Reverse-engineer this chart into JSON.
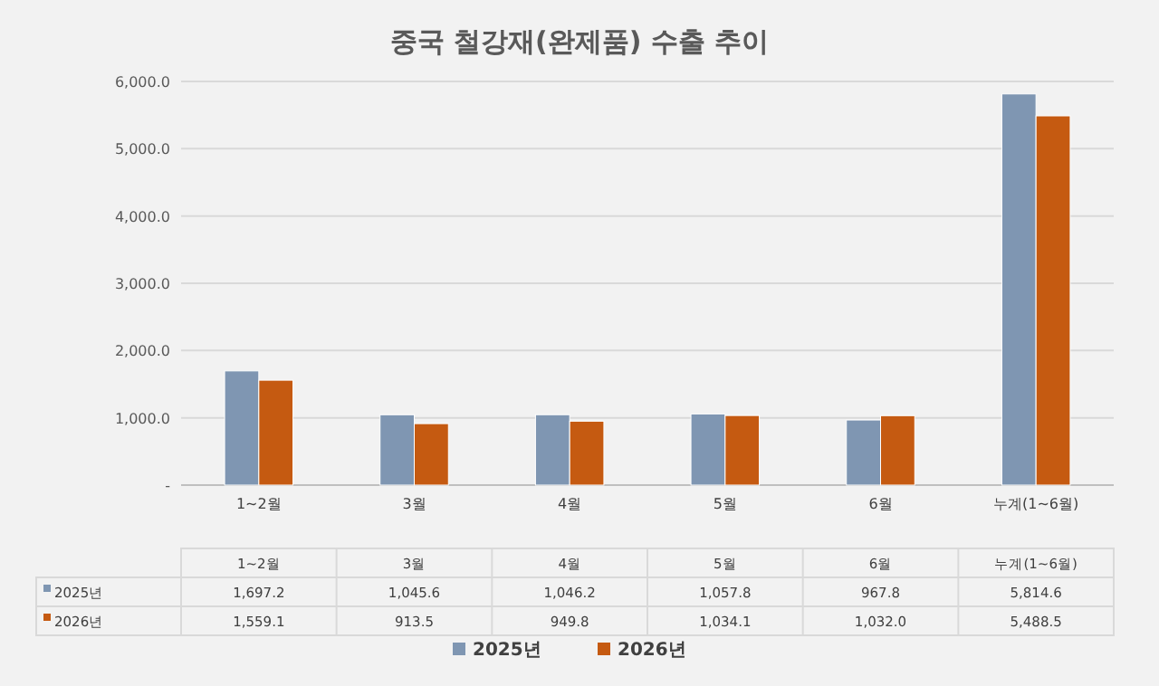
{
  "chart_data": {
    "type": "bar",
    "title": "중국 철강재(완제품) 수출 추이",
    "categories": [
      "1~2월",
      "3월",
      "4월",
      "5월",
      "6월",
      "누계(1~6월)"
    ],
    "series": [
      {
        "name": "2025년",
        "color": "#7f96b2",
        "values": [
          1697.2,
          1045.6,
          1046.2,
          1057.8,
          967.8,
          5814.6
        ],
        "value_labels": [
          "1,697.2",
          "1,045.6",
          "1,046.2",
          "1,057.8",
          "967.8",
          "5,814.6"
        ]
      },
      {
        "name": "2026년",
        "color": "#c55a11",
        "values": [
          1559.1,
          913.5,
          949.8,
          1034.1,
          1032.0,
          5488.5
        ],
        "value_labels": [
          "1,559.1",
          "913.5",
          "949.8",
          "1,034.1",
          "1,032.0",
          "5,488.5"
        ]
      }
    ],
    "ylim": [
      0,
      6000
    ],
    "yticks": [
      {
        "value": 0,
        "label": "-"
      },
      {
        "value": 1000,
        "label": "1,000.0"
      },
      {
        "value": 2000,
        "label": "2,000.0"
      },
      {
        "value": 3000,
        "label": "3,000.0"
      },
      {
        "value": 4000,
        "label": "4,000.0"
      },
      {
        "value": 5000,
        "label": "5,000.0"
      },
      {
        "value": 6000,
        "label": "6,000.0"
      }
    ],
    "grid": "y",
    "legend": "bottom"
  }
}
